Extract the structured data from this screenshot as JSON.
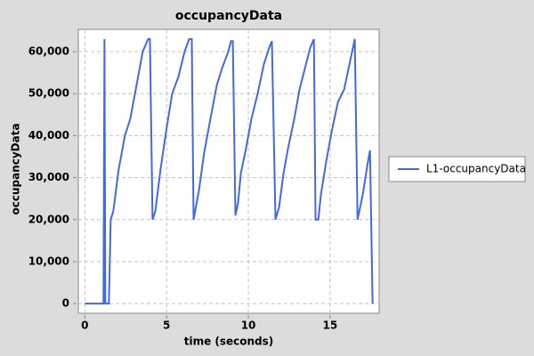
{
  "chart_data": {
    "type": "line",
    "title": "occupancyData",
    "x_label": "time (seconds)",
    "y_label": "occupancyData",
    "xlim": [
      -0.4,
      18.0
    ],
    "ylim": [
      -2300,
      65300
    ],
    "xticks": [
      0,
      5,
      10,
      15
    ],
    "yticks": [
      0,
      {
        "value": 10000,
        "label": "10,000"
      },
      {
        "value": 20000,
        "label": "20,000"
      },
      {
        "value": 30000,
        "label": "30,000"
      },
      {
        "value": 40000,
        "label": "40,000"
      },
      {
        "value": 50000,
        "label": "50,000"
      },
      {
        "value": 60000,
        "label": "60,000"
      }
    ],
    "grid": true,
    "legend": "right",
    "series": [
      {
        "name": "L1-occupancyData",
        "color": "#4169e1",
        "x": [
          0,
          1.14,
          1.2,
          1.25,
          1.47,
          1.58,
          1.74,
          2.07,
          2.45,
          2.78,
          3.16,
          3.54,
          3.87,
          3.98,
          4.14,
          4.31,
          4.63,
          5.01,
          5.34,
          5.72,
          6.1,
          6.38,
          6.54,
          6.65,
          6.98,
          7.3,
          7.68,
          8.07,
          8.39,
          8.77,
          8.94,
          9.05,
          9.21,
          9.37,
          9.54,
          9.86,
          10.19,
          10.57,
          10.95,
          11.28,
          11.44,
          11.66,
          11.88,
          12.15,
          12.43,
          12.81,
          13.13,
          13.46,
          13.79,
          14.01,
          14.11,
          14.28,
          14.44,
          14.77,
          15.1,
          15.48,
          15.86,
          16.24,
          16.51,
          16.68,
          17.0,
          17.28,
          17.44,
          17.6
        ],
        "values": [
          0,
          0,
          63000,
          0,
          0,
          20000,
          22000,
          32000,
          40000,
          44000,
          52000,
          60000,
          63000,
          63000,
          20000,
          22000,
          32000,
          42000,
          50000,
          54000,
          60000,
          63000,
          63000,
          20000,
          27000,
          36000,
          44000,
          52000,
          56000,
          60000,
          62500,
          62500,
          21000,
          24000,
          31000,
          37000,
          44000,
          50000,
          57000,
          61000,
          62500,
          20000,
          23000,
          31000,
          37000,
          44000,
          51000,
          56000,
          61000,
          63000,
          20000,
          20000,
          26000,
          34000,
          41000,
          48000,
          51000,
          58000,
          63000,
          20000,
          26000,
          33000,
          36500,
          0
        ]
      }
    ]
  }
}
